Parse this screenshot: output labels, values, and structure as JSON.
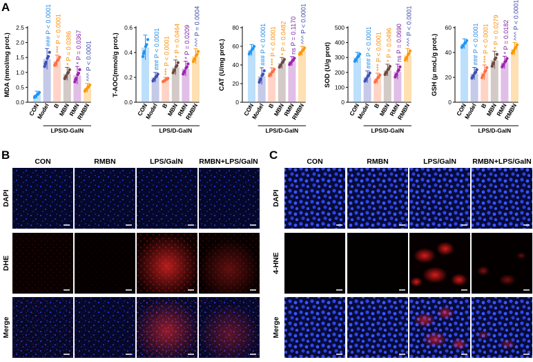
{
  "panels": {
    "a": {
      "letter": "A",
      "group_label": "LPS/D-GalN",
      "groups": [
        "CON",
        "Model",
        "B",
        "MBN",
        "RMN",
        "RMBN"
      ],
      "colors": {
        "con": "#2196f3",
        "model": "#3f51b5",
        "b": "#ff7043",
        "mbn": "#6d4c41",
        "rmn": "#9c27b0",
        "rmbn": "#ff9800",
        "pval_blue": "#1e88e5",
        "pval_orange": "#fb8c00",
        "pval_purple": "#7b1fa2",
        "pval_indigo": "#3949ab"
      }
    },
    "b": {
      "letter": "B",
      "columns": [
        "CON",
        "RMBN",
        "LPS/GalN",
        "RMBN+LPS/GalN"
      ],
      "rows": [
        "DAPI",
        "DHE",
        "Merge"
      ]
    },
    "c": {
      "letter": "C",
      "columns": [
        "CON",
        "RMBN",
        "LPS/GalN",
        "RMBN+LPS/GalN"
      ],
      "rows": [
        "DAPI",
        "4-HNE",
        "Merge"
      ]
    }
  },
  "chart_data": [
    {
      "type": "bar",
      "ylabel": "MDA (nmol/mg prot.)",
      "ylim": [
        0,
        2.5
      ],
      "ticks": [
        "0.0",
        "0.5",
        "1.0",
        "1.5",
        "2.0",
        "2.5"
      ],
      "categories": [
        "CON",
        "Model",
        "B",
        "MBN",
        "RMN",
        "RMBN"
      ],
      "values": [
        0.25,
        1.45,
        1.38,
        0.95,
        0.9,
        0.48
      ],
      "err": [
        0.12,
        0.35,
        0.2,
        0.22,
        0.3,
        0.15
      ],
      "annotations": [
        "",
        "P < 0.0001",
        "P < 0.0001",
        "P = 0.0386",
        "P = 0.0367",
        "P < 0.0001"
      ],
      "stars": [
        "",
        "###",
        "***",
        "*",
        "*",
        "^^^"
      ]
    },
    {
      "type": "bar",
      "ylabel": "T-AOC(mmol/g prot.)",
      "ylim": [
        0,
        0.6
      ],
      "ticks": [
        "0.0",
        "0.2",
        "0.4",
        "0.6"
      ],
      "categories": [
        "CON",
        "Model",
        "B",
        "MBN",
        "RMN",
        "RMBN"
      ],
      "values": [
        0.44,
        0.2,
        0.18,
        0.28,
        0.27,
        0.37
      ],
      "err": [
        0.1,
        0.04,
        0.02,
        0.06,
        0.06,
        0.06
      ],
      "annotations": [
        "",
        "P < 0.0001",
        "P < 0.0001",
        "P = 0.0464",
        "P = 0.0209",
        "P = 0.0004"
      ],
      "stars": [
        "",
        "###",
        "***",
        "*",
        "*",
        "^^^"
      ]
    },
    {
      "type": "bar",
      "ylabel": "CAT (U/mg prot.)",
      "ylim": [
        0,
        80
      ],
      "ticks": [
        "0",
        "20",
        "40",
        "60",
        "80"
      ],
      "categories": [
        "CON",
        "Model",
        "B",
        "MBN",
        "RMN",
        "RMBN"
      ],
      "values": [
        56,
        28,
        32,
        42,
        44,
        55
      ],
      "err": [
        6,
        9,
        5,
        6,
        5,
        5
      ],
      "annotations": [
        "",
        "P < 0.0001",
        "P < 0.0001",
        "P = 0.0482",
        "P = 0.1170",
        "P < 0.0001"
      ],
      "stars": [
        "",
        "###",
        "***",
        "*",
        "ns",
        "^^^"
      ]
    },
    {
      "type": "bar",
      "ylabel": "SOD (U/g prot)",
      "ylim": [
        0,
        500
      ],
      "ticks": [
        "0",
        "100",
        "200",
        "300",
        "400",
        "500"
      ],
      "categories": [
        "CON",
        "Model",
        "B",
        "MBN",
        "RMN",
        "RMBN"
      ],
      "values": [
        300,
        170,
        160,
        215,
        205,
        315
      ],
      "err": [
        35,
        40,
        35,
        40,
        50,
        45
      ],
      "annotations": [
        "",
        "P < 0.0001",
        "P < 0.0001",
        "P = 0.0496",
        "P = 0.0690",
        "P < 0.0001"
      ],
      "stars": [
        "",
        "###",
        "***",
        "*",
        "ns",
        "^^^"
      ]
    },
    {
      "type": "bar",
      "ylabel": "GSH (μ moL/g prot.)",
      "ylim": [
        0,
        60
      ],
      "ticks": [
        "0",
        "20",
        "40",
        "60"
      ],
      "categories": [
        "CON",
        "Model",
        "B",
        "MBN",
        "RMN",
        "RMBN"
      ],
      "values": [
        47,
        23,
        24,
        34,
        32,
        43
      ],
      "err": [
        4,
        5,
        6,
        7,
        5,
        5
      ],
      "annotations": [
        "",
        "P < 0.0001",
        "P < 0.0001",
        "P = 0.0279",
        "P = 0.0182",
        "P < 0.0001"
      ],
      "stars": [
        "",
        "###",
        "***",
        "*",
        "*",
        "^^^"
      ]
    }
  ]
}
